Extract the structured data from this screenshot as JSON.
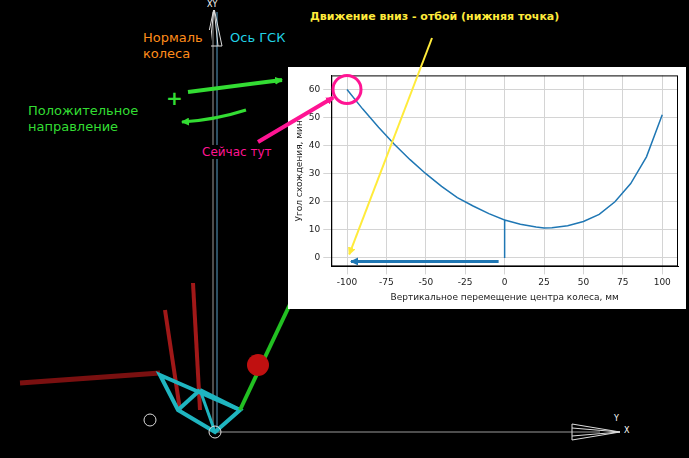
{
  "chart_data": {
    "type": "line",
    "x_label": "Вертикальное перемещение центра колеса, мм",
    "y_label": "Угол схождения, мин",
    "series": [
      {
        "color": "#1f77b4",
        "x": [
          0,
          0,
          -10,
          -20,
          -30,
          -40,
          -50,
          -60,
          -70,
          -80,
          -90,
          -100,
          null,
          0,
          10,
          20,
          25,
          30,
          40,
          50,
          60,
          70,
          80,
          90,
          100
        ],
        "values": [
          0,
          13.5,
          15.8,
          18.5,
          21.5,
          25.5,
          30,
          35,
          40.5,
          46.5,
          53,
          60,
          null,
          13.5,
          12,
          11,
          10.7,
          10.8,
          11.5,
          13,
          15.5,
          20,
          26.5,
          36,
          51
        ]
      }
    ],
    "xlim": [
      -110,
      110
    ],
    "xticks": [
      -100,
      -75,
      -50,
      -25,
      0,
      25,
      50,
      75,
      100
    ],
    "ylim": [
      -3,
      65
    ],
    "yticks": [
      0,
      10,
      20,
      30,
      40,
      50,
      60
    ],
    "grid": true
  },
  "annotations": [
    {
      "text": "Нормаль колеса",
      "color": "#ff8c1a"
    },
    {
      "text": "Ось ГСК",
      "color": "#22d3e6"
    },
    {
      "text": "Движение вниз - отбой (нижняя точка)",
      "color": "#ffeb3b"
    },
    {
      "text": "Положительное направление",
      "color": "#33dd33"
    },
    {
      "text": "+",
      "color": "#33dd33"
    },
    {
      "text": "Сейчас тут",
      "color": "#ff1493"
    },
    {
      "text": "XY",
      "color": "#ffffff"
    },
    {
      "text": "Y",
      "color": "#ffffff"
    },
    {
      "text": "X",
      "color": "#ffffff"
    }
  ]
}
